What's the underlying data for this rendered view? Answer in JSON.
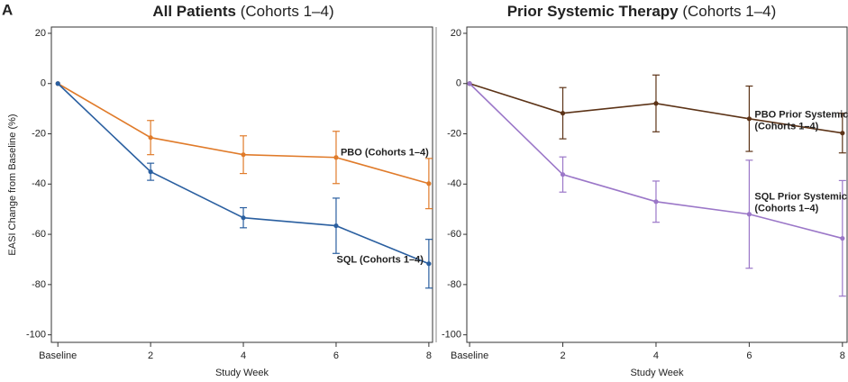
{
  "panel_label": "A",
  "chart_data": [
    {
      "type": "line",
      "title": "All Patients",
      "title_suffix": "(Cohorts 1–4)",
      "ylabel": "EASI Change from Baseline (%)",
      "xlabel": "Study Week",
      "x": [
        0,
        2,
        4,
        6,
        8
      ],
      "xlim": [
        -0.14,
        8.08
      ],
      "xticks": [
        {
          "value": 0,
          "label": "Baseline"
        },
        2,
        4,
        6,
        8
      ],
      "ylim": [
        -103,
        22.5
      ],
      "yticks": [
        20,
        0,
        -20,
        -40,
        -60,
        -80,
        -100
      ],
      "series": [
        {
          "label_lines": [
            "PBO (Cohorts 1–4)"
          ],
          "color": "#e07b2a",
          "values": [
            0,
            -21.5,
            -28.3,
            -29.4,
            -39.8
          ],
          "errors": [
            0,
            6.8,
            7.5,
            10.4,
            10
          ]
        },
        {
          "label_lines": [
            "SQL (Cohorts 1–4)"
          ],
          "color": "#2a5fa0",
          "values": [
            0,
            -35.1,
            -53.4,
            -56.6,
            -71.7
          ],
          "errors": [
            0,
            3.4,
            4,
            11,
            9.7
          ]
        }
      ]
    },
    {
      "type": "line",
      "title": "Prior Systemic Therapy",
      "title_suffix": "(Cohorts 1–4)",
      "xlabel": "Study Week",
      "x": [
        0,
        2,
        4,
        6,
        8
      ],
      "xlim": [
        -0.06,
        8.1
      ],
      "xticks": [
        {
          "value": 0,
          "label": "Baseline"
        },
        2,
        4,
        6,
        8
      ],
      "ylim": [
        -103,
        22.5
      ],
      "yticks": [
        20,
        0,
        -20,
        -40,
        -60,
        -80,
        -100
      ],
      "series": [
        {
          "label_lines": [
            "PBO Prior Systemic",
            "(Cohorts 1–4)"
          ],
          "color": "#5c3317",
          "values": [
            0,
            -11.8,
            -7.9,
            -14,
            -19.7
          ],
          "errors": [
            0,
            10.2,
            11.3,
            13,
            7.9
          ]
        },
        {
          "label_lines": [
            "SQL Prior Systemic",
            "(Cohorts 1–4)"
          ],
          "color": "#9b77c8",
          "values": [
            0,
            -36.2,
            -47,
            -52,
            -61.6
          ],
          "errors": [
            0,
            7,
            8.2,
            21.5,
            23
          ]
        }
      ]
    }
  ]
}
